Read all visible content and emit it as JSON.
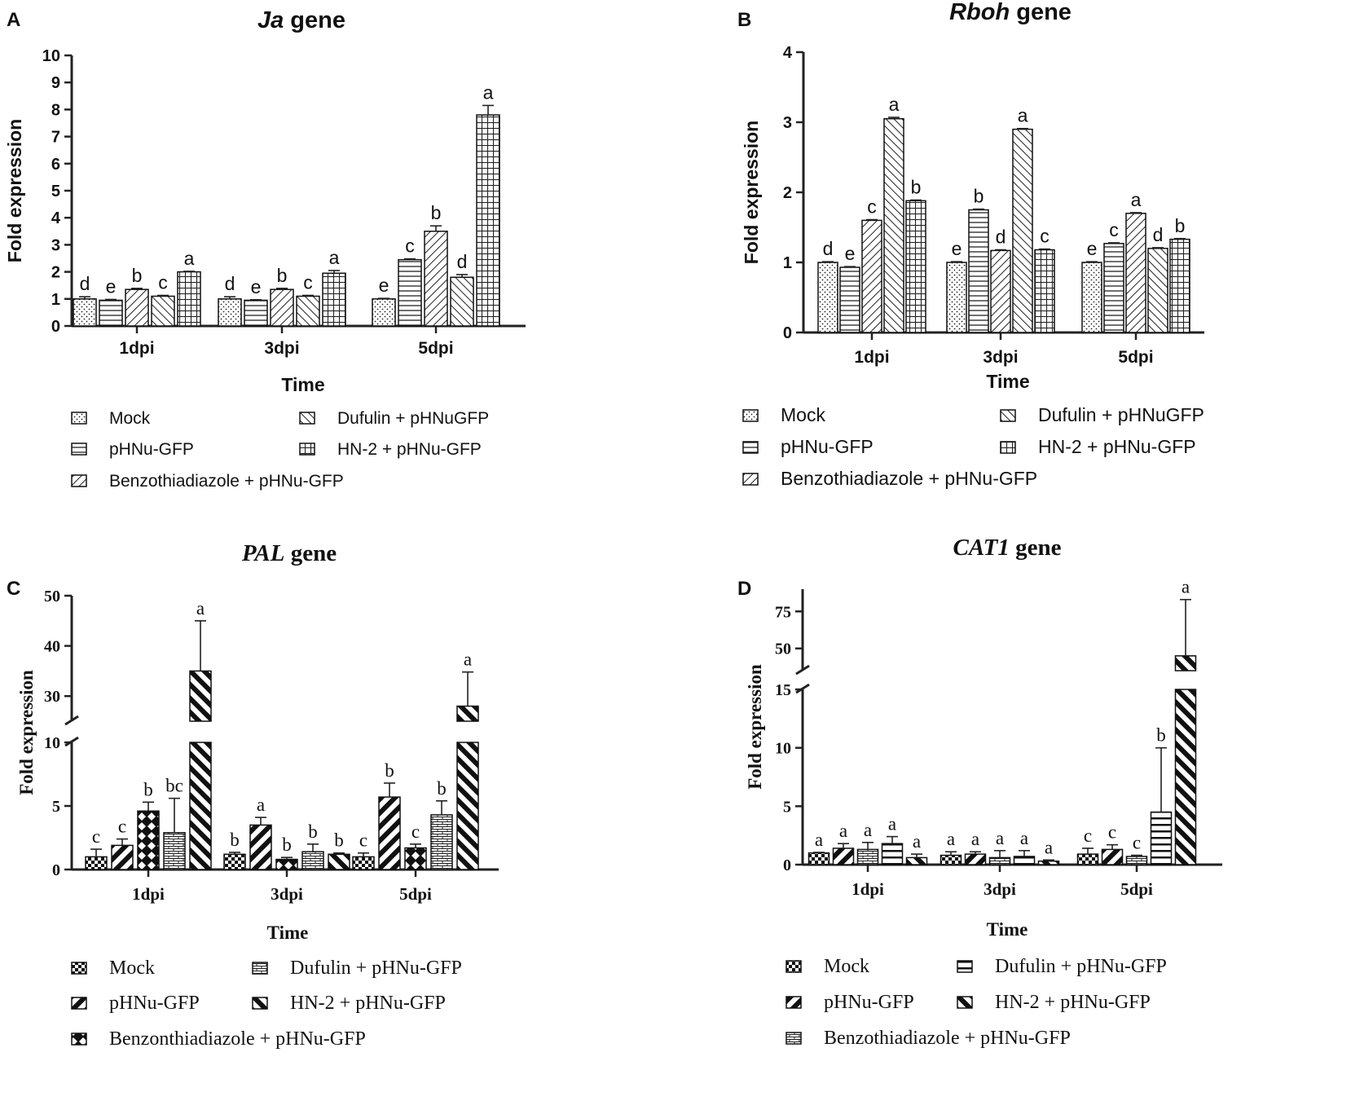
{
  "figure": {
    "panels": [
      "A",
      "B",
      "C",
      "D"
    ]
  },
  "chart_data": [
    {
      "panel": "A",
      "type": "bar",
      "title_italic": "Ja",
      "title_rest": " gene",
      "xlabel": "Time",
      "ylabel": "Fold expression",
      "categories": [
        "1dpi",
        "3dpi",
        "5dpi"
      ],
      "ylim": [
        0,
        10
      ],
      "yticks": [
        0,
        1,
        2,
        3,
        4,
        5,
        6,
        7,
        8,
        9,
        10
      ],
      "series": [
        {
          "name": "Mock",
          "pattern": "dots",
          "values": [
            1.0,
            1.0,
            1.0
          ],
          "errors": [
            0.08,
            0.08,
            0.02
          ],
          "letters": [
            "d",
            "d",
            "e"
          ]
        },
        {
          "name": "pHNu-GFP",
          "pattern": "hlines",
          "values": [
            0.95,
            0.95,
            2.45
          ],
          "errors": [
            0.03,
            0.02,
            0.03
          ],
          "letters": [
            "e",
            "e",
            "c"
          ]
        },
        {
          "name": "Benzothiadiazole + pHNu-GFP",
          "pattern": "diag",
          "values": [
            1.35,
            1.35,
            3.5
          ],
          "errors": [
            0.04,
            0.04,
            0.2
          ],
          "letters": [
            "b",
            "b",
            "b"
          ]
        },
        {
          "name": "Dufulin + pHNuGFP",
          "pattern": "backdiag",
          "values": [
            1.1,
            1.1,
            1.8
          ],
          "errors": [
            0.03,
            0.03,
            0.1
          ],
          "letters": [
            "c",
            "c",
            "d"
          ]
        },
        {
          "name": "HN-2 + pHNu-GFP",
          "pattern": "grid",
          "values": [
            2.0,
            1.95,
            7.8
          ],
          "errors": [
            0.02,
            0.1,
            0.35
          ],
          "letters": [
            "a",
            "a",
            "a"
          ]
        }
      ],
      "legend_order": [
        0,
        3,
        1,
        4,
        2
      ]
    },
    {
      "panel": "B",
      "type": "bar",
      "title_italic": "Rboh",
      "title_rest": " gene",
      "xlabel": "Time",
      "ylabel": "Fold expression",
      "categories": [
        "1dpi",
        "3dpi",
        "5dpi"
      ],
      "ylim": [
        0,
        4
      ],
      "yticks": [
        0,
        1,
        2,
        3,
        4
      ],
      "series": [
        {
          "name": "Mock",
          "pattern": "dots",
          "values": [
            1.0,
            1.0,
            1.0
          ],
          "errors": [
            0.01,
            0.01,
            0.01
          ],
          "letters": [
            "d",
            "e",
            "e"
          ]
        },
        {
          "name": "pHNu-GFP",
          "pattern": "hlines",
          "values": [
            0.93,
            1.75,
            1.27
          ],
          "errors": [
            0.01,
            0.01,
            0.01
          ],
          "letters": [
            "e",
            "b",
            "c"
          ]
        },
        {
          "name": "Benzothiadiazole + pHNu-GFP",
          "pattern": "diag",
          "values": [
            1.6,
            1.17,
            1.7
          ],
          "errors": [
            0.01,
            0.01,
            0.01
          ],
          "letters": [
            "c",
            "d",
            "a"
          ]
        },
        {
          "name": "Dufulin + pHNuGFP",
          "pattern": "backdiag",
          "values": [
            3.05,
            2.9,
            1.2
          ],
          "errors": [
            0.02,
            0.01,
            0.01
          ],
          "letters": [
            "a",
            "a",
            "d"
          ]
        },
        {
          "name": "HN-2 + pHNu-GFP",
          "pattern": "grid",
          "values": [
            1.88,
            1.18,
            1.33
          ],
          "errors": [
            0.01,
            0.01,
            0.01
          ],
          "letters": [
            "b",
            "c",
            "b"
          ]
        }
      ],
      "legend_order": [
        0,
        3,
        1,
        4,
        2
      ],
      "legend_labels": [
        "Mock",
        "Dufulin + pHNuGFP",
        "pHNu-GFP",
        "HN-2 + pHNu-GFP",
        "Benzothiadiazole +  pHNu-GFP"
      ]
    },
    {
      "panel": "C",
      "type": "bar",
      "broken_axis": true,
      "title_italic": "PAL",
      "title_rest": " gene",
      "xlabel": "Time",
      "ylabel": "Fold expression",
      "categories": [
        "1dpi",
        "3dpi",
        "5dpi"
      ],
      "lower_range": [
        0,
        10
      ],
      "upper_range": [
        25,
        50
      ],
      "yticks_lower": [
        0,
        5,
        10
      ],
      "yticks_upper": [
        30,
        40,
        50
      ],
      "series": [
        {
          "name": "Mock",
          "pattern": "checker",
          "values": [
            1.0,
            1.2,
            1.0
          ],
          "errors": [
            0.6,
            0.15,
            0.3
          ],
          "letters": [
            "c",
            "b",
            "c"
          ]
        },
        {
          "name": "pHNu-GFP",
          "pattern": "thickdiag",
          "values": [
            1.9,
            3.5,
            5.7
          ],
          "errors": [
            0.5,
            0.6,
            1.1
          ],
          "letters": [
            "c",
            "a",
            "b"
          ]
        },
        {
          "name": "Benzonthiadiazole + pHNu-GFP",
          "pattern": "diamond",
          "values": [
            4.6,
            0.8,
            1.7
          ],
          "errors": [
            0.7,
            0.15,
            0.3
          ],
          "letters": [
            "b",
            "b",
            "c"
          ]
        },
        {
          "name": "Dufulin + pHNu-GFP",
          "pattern": "brick",
          "values": [
            2.9,
            1.4,
            4.3
          ],
          "errors": [
            2.7,
            0.6,
            1.1
          ],
          "letters": [
            "bc",
            "b",
            "b"
          ]
        },
        {
          "name": "HN-2 + pHNu-GFP",
          "pattern": "thickback",
          "values": [
            35.0,
            1.2,
            28.0
          ],
          "errors": [
            10.0,
            0.1,
            6.8
          ],
          "letters": [
            "a",
            "b",
            "a"
          ]
        }
      ],
      "legend_order": [
        0,
        3,
        1,
        4,
        2
      ]
    },
    {
      "panel": "D",
      "type": "bar",
      "broken_axis": true,
      "title_italic": "CAT1",
      "title_rest": " gene",
      "xlabel": "Time",
      "ylabel": "Fold expression",
      "categories": [
        "1dpi",
        "3dpi",
        "5dpi"
      ],
      "lower_range": [
        0,
        15
      ],
      "upper_range": [
        35,
        90
      ],
      "yticks_lower": [
        0,
        5,
        10,
        15
      ],
      "yticks_upper": [
        50,
        75
      ],
      "series": [
        {
          "name": "Mock",
          "pattern": "checker",
          "values": [
            1.0,
            0.8,
            0.9
          ],
          "errors": [
            0.05,
            0.3,
            0.5
          ],
          "letters": [
            "a",
            "a",
            "c"
          ]
        },
        {
          "name": "pHNu-GFP",
          "pattern": "thickdiag",
          "values": [
            1.4,
            0.9,
            1.3
          ],
          "errors": [
            0.4,
            0.2,
            0.4
          ],
          "letters": [
            "a",
            "a",
            "c"
          ]
        },
        {
          "name": "Benzothiadiazole + pHNu-GFP",
          "pattern": "brick",
          "values": [
            1.3,
            0.6,
            0.7
          ],
          "errors": [
            0.6,
            0.6,
            0.1
          ],
          "letters": [
            "a",
            "a",
            "c"
          ]
        },
        {
          "name": "Dufulin + pHNu-GFP",
          "pattern": "hthick",
          "values": [
            1.8,
            0.7,
            4.5
          ],
          "errors": [
            0.6,
            0.5,
            5.5
          ],
          "letters": [
            "a",
            "a",
            "b"
          ]
        },
        {
          "name": "HN-2 + pHNu-GFP",
          "pattern": "thickback",
          "values": [
            0.6,
            0.3,
            45.0
          ],
          "errors": [
            0.3,
            0.1,
            38.0
          ],
          "letters": [
            "a",
            "a",
            "a"
          ]
        }
      ],
      "legend_order": [
        0,
        3,
        1,
        4,
        2
      ]
    }
  ]
}
